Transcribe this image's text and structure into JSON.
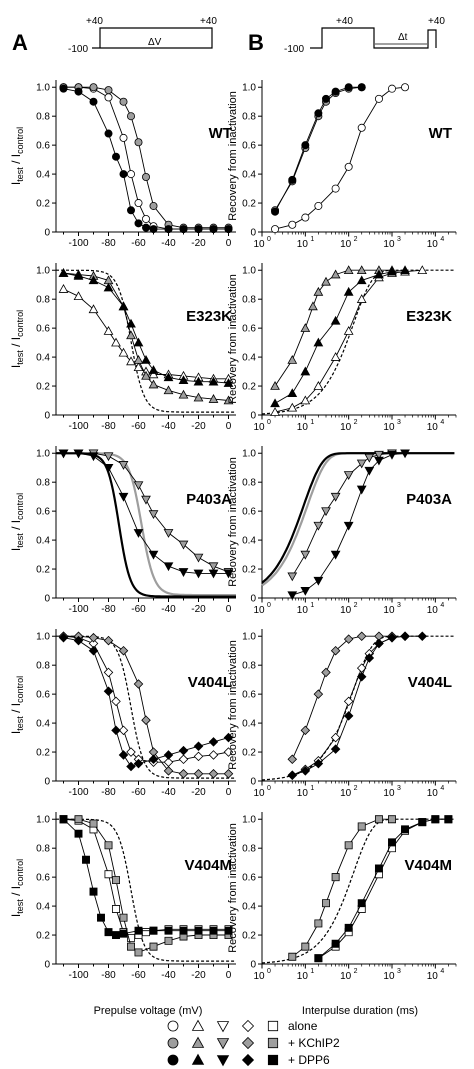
{
  "panel_letters": [
    "A",
    "B"
  ],
  "protocols": {
    "inactivation": {
      "hold": "-100",
      "pre": "+40",
      "post": "+40",
      "step": "ΔV"
    },
    "recovery": {
      "hold": "-100",
      "first": "+40",
      "second": "+40",
      "step": "Δt"
    }
  },
  "left_ylabel_main": "I",
  "left_ylabel_sub1": "test",
  "left_ylabel_mid": " / I",
  "left_ylabel_sub2": "control",
  "right_ylabel": "Recovery from inactivation",
  "left_xlabel": "Prepulse voltage (mV)",
  "right_xlabel": "Interpulse duration (ms)",
  "left_xticks": [
    "-100",
    "-80",
    "-60",
    "-40",
    "-20",
    "0"
  ],
  "yticks": [
    "0",
    "0.2",
    "0.4",
    "0.6",
    "0.8",
    "1.0"
  ],
  "right_xticks": [
    {
      "base": "10",
      "exp": "0"
    },
    {
      "base": "10",
      "exp": "1"
    },
    {
      "base": "10",
      "exp": "2"
    },
    {
      "base": "10",
      "exp": "3"
    },
    {
      "base": "10",
      "exp": "4"
    }
  ],
  "legend": {
    "rows": [
      {
        "label": "alone",
        "fill": "#ffffff"
      },
      {
        "label": "+ KChIP2",
        "fill": "#9e9e9e"
      },
      {
        "label": "+ DPP6",
        "fill": "#000000"
      }
    ],
    "shapes": [
      "circle",
      "triangle-up",
      "triangle-down",
      "diamond",
      "square"
    ]
  },
  "chart_data": [
    {
      "type": "scatter",
      "panel": "A",
      "mutant": "WT",
      "shape": "circle",
      "xlim": [
        -115,
        5
      ],
      "ylim": [
        0,
        1.05
      ],
      "series": [
        {
          "condition": "alone",
          "x": [
            -110,
            -100,
            -90,
            -80,
            -70,
            -65,
            -60,
            -55,
            -50,
            -40,
            -30,
            -20,
            -10,
            0
          ],
          "y": [
            1,
            1,
            0.99,
            0.93,
            0.65,
            0.4,
            0.2,
            0.09,
            0.04,
            0.02,
            0.02,
            0.02,
            0.02,
            0.02
          ]
        },
        {
          "condition": "+ KChIP2",
          "x": [
            -110,
            -100,
            -90,
            -80,
            -70,
            -65,
            -60,
            -55,
            -50,
            -40,
            -30,
            -20,
            -10,
            0
          ],
          "y": [
            1,
            1,
            1,
            0.98,
            0.9,
            0.8,
            0.62,
            0.38,
            0.18,
            0.05,
            0.03,
            0.03,
            0.03,
            0.03
          ]
        },
        {
          "condition": "+ DPP6",
          "x": [
            -110,
            -100,
            -90,
            -80,
            -75,
            -70,
            -65,
            -60,
            -55,
            -50,
            -40,
            -30,
            -20,
            -10,
            0
          ],
          "y": [
            0.99,
            0.97,
            0.9,
            0.68,
            0.52,
            0.4,
            0.15,
            0.06,
            0.03,
            0.02,
            0.02,
            0.02,
            0.02,
            0.02,
            0.02
          ]
        }
      ]
    },
    {
      "type": "scatter",
      "panel": "A",
      "mutant": "E323K",
      "shape": "triangle-up",
      "xlim": [
        -115,
        5
      ],
      "ylim": [
        0,
        1.05
      ],
      "reference_dashed": "WT alone",
      "series": [
        {
          "condition": "alone",
          "x": [
            -110,
            -100,
            -90,
            -80,
            -75,
            -70,
            -65,
            -60,
            -55,
            -50,
            -40,
            -30,
            -20,
            -10,
            0
          ],
          "y": [
            0.87,
            0.82,
            0.73,
            0.58,
            0.5,
            0.43,
            0.37,
            0.33,
            0.3,
            0.28,
            0.28,
            0.27,
            0.26,
            0.25,
            0.25
          ]
        },
        {
          "condition": "+ KChIP2",
          "x": [
            -110,
            -100,
            -90,
            -80,
            -70,
            -65,
            -60,
            -55,
            -50,
            -40,
            -30,
            -20,
            -10,
            0
          ],
          "y": [
            0.98,
            0.97,
            0.96,
            0.93,
            0.75,
            0.55,
            0.38,
            0.27,
            0.21,
            0.17,
            0.14,
            0.12,
            0.11,
            0.1
          ]
        },
        {
          "condition": "+ DPP6",
          "x": [
            -110,
            -100,
            -90,
            -80,
            -70,
            -65,
            -60,
            -55,
            -50,
            -40,
            -30,
            -20,
            -10,
            0
          ],
          "y": [
            0.98,
            0.96,
            0.93,
            0.88,
            0.75,
            0.63,
            0.5,
            0.38,
            0.31,
            0.26,
            0.24,
            0.23,
            0.23,
            0.22
          ]
        }
      ]
    },
    {
      "type": "scatter",
      "panel": "A",
      "mutant": "P403A",
      "shape": "triangle-down",
      "xlim": [
        -115,
        5
      ],
      "ylim": [
        0,
        1.05
      ],
      "reference_solid_black": "WT + DPP6 fit",
      "reference_solid_gray": "WT + KChIP2 fit",
      "series": [
        {
          "condition": "+ KChIP2",
          "x": [
            -110,
            -100,
            -90,
            -80,
            -70,
            -60,
            -55,
            -50,
            -40,
            -30,
            -20,
            -10,
            0
          ],
          "y": [
            1,
            1,
            1,
            0.98,
            0.92,
            0.78,
            0.68,
            0.58,
            0.45,
            0.37,
            0.28,
            0.22,
            0.18
          ]
        },
        {
          "condition": "+ DPP6",
          "x": [
            -110,
            -100,
            -90,
            -80,
            -70,
            -60,
            -50,
            -40,
            -30,
            -20,
            -10,
            0
          ],
          "y": [
            1,
            1,
            0.98,
            0.9,
            0.7,
            0.45,
            0.3,
            0.22,
            0.18,
            0.17,
            0.17,
            0.17
          ]
        }
      ]
    },
    {
      "type": "scatter",
      "panel": "A",
      "mutant": "V404L",
      "shape": "diamond",
      "xlim": [
        -115,
        5
      ],
      "ylim": [
        0,
        1.05
      ],
      "reference_dashed": "WT alone",
      "series": [
        {
          "condition": "alone",
          "x": [
            -110,
            -100,
            -90,
            -80,
            -75,
            -70,
            -65,
            -60,
            -50,
            -40,
            -30,
            -20,
            -10,
            0
          ],
          "y": [
            1,
            0.99,
            0.95,
            0.75,
            0.55,
            0.35,
            0.2,
            0.15,
            0.13,
            0.13,
            0.15,
            0.17,
            0.18,
            0.2
          ]
        },
        {
          "condition": "+ KChIP2",
          "x": [
            -110,
            -100,
            -90,
            -80,
            -70,
            -60,
            -55,
            -50,
            -40,
            -30,
            -20,
            -10,
            0
          ],
          "y": [
            1,
            1,
            0.99,
            0.97,
            0.9,
            0.67,
            0.42,
            0.2,
            0.07,
            0.05,
            0.05,
            0.05,
            0.05
          ]
        },
        {
          "condition": "+ DPP6",
          "x": [
            -110,
            -100,
            -90,
            -80,
            -75,
            -70,
            -65,
            -60,
            -50,
            -40,
            -30,
            -20,
            -10,
            0
          ],
          "y": [
            0.99,
            0.97,
            0.9,
            0.62,
            0.35,
            0.18,
            0.1,
            0.12,
            0.15,
            0.18,
            0.21,
            0.24,
            0.27,
            0.3
          ]
        }
      ]
    },
    {
      "type": "scatter",
      "panel": "A",
      "mutant": "V404M",
      "shape": "square",
      "xlim": [
        -115,
        5
      ],
      "ylim": [
        0,
        1.05
      ],
      "reference_dashed": "WT alone",
      "series": [
        {
          "condition": "alone",
          "x": [
            -110,
            -100,
            -90,
            -80,
            -75,
            -70,
            -65,
            -60,
            -55,
            -50,
            -40,
            -30,
            -20,
            -10,
            0
          ],
          "y": [
            1,
            0.99,
            0.93,
            0.62,
            0.38,
            0.22,
            0.18,
            0.2,
            0.22,
            0.23,
            0.24,
            0.24,
            0.24,
            0.24,
            0.24
          ]
        },
        {
          "condition": "+ KChIP2",
          "x": [
            -110,
            -100,
            -90,
            -80,
            -75,
            -70,
            -65,
            -60,
            -50,
            -40,
            -30,
            -20,
            -10,
            0
          ],
          "y": [
            1,
            1,
            0.97,
            0.82,
            0.58,
            0.32,
            0.12,
            0.08,
            0.12,
            0.16,
            0.19,
            0.2,
            0.2,
            0.2
          ]
        },
        {
          "condition": "+ DPP6",
          "x": [
            -110,
            -100,
            -95,
            -90,
            -85,
            -80,
            -75,
            -70,
            -60,
            -50,
            -40,
            -30,
            -20,
            -10,
            0
          ],
          "y": [
            1,
            0.9,
            0.72,
            0.5,
            0.32,
            0.22,
            0.2,
            0.21,
            0.23,
            0.23,
            0.23,
            0.23,
            0.23,
            0.23,
            0.23
          ]
        }
      ]
    },
    {
      "type": "scatter",
      "panel": "B",
      "mutant": "WT",
      "shape": "circle",
      "xscale": "log",
      "xlim": [
        1,
        30000
      ],
      "ylim": [
        0,
        1.05
      ],
      "series": [
        {
          "condition": "alone",
          "x": [
            2,
            5,
            10,
            20,
            50,
            100,
            200,
            500,
            1000,
            2000
          ],
          "y": [
            0.02,
            0.05,
            0.1,
            0.18,
            0.3,
            0.45,
            0.72,
            0.92,
            0.99,
            1
          ]
        },
        {
          "condition": "+ KChIP2",
          "x": [
            2,
            5,
            10,
            20,
            30,
            50,
            100,
            200
          ],
          "y": [
            0.15,
            0.35,
            0.58,
            0.8,
            0.9,
            0.96,
            0.99,
            1
          ]
        },
        {
          "condition": "+ DPP6",
          "x": [
            2,
            5,
            10,
            20,
            30,
            50,
            100,
            200
          ],
          "y": [
            0.14,
            0.36,
            0.6,
            0.82,
            0.92,
            0.97,
            1,
            1
          ]
        }
      ]
    },
    {
      "type": "scatter",
      "panel": "B",
      "mutant": "E323K",
      "shape": "triangle-up",
      "xscale": "log",
      "xlim": [
        1,
        30000
      ],
      "ylim": [
        0,
        1.05
      ],
      "reference_dashed": "WT alone",
      "series": [
        {
          "condition": "alone",
          "x": [
            2,
            5,
            10,
            20,
            50,
            100,
            200,
            500,
            1000,
            2000,
            5000
          ],
          "y": [
            0.02,
            0.05,
            0.1,
            0.2,
            0.4,
            0.58,
            0.8,
            0.95,
            0.98,
            0.99,
            1
          ]
        },
        {
          "condition": "+ KChIP2",
          "x": [
            2,
            5,
            10,
            15,
            20,
            30,
            50,
            100,
            200,
            500,
            1000
          ],
          "y": [
            0.2,
            0.38,
            0.6,
            0.75,
            0.85,
            0.92,
            0.97,
            1,
            1,
            1,
            1
          ]
        },
        {
          "condition": "+ DPP6",
          "x": [
            2,
            5,
            10,
            20,
            50,
            100,
            200,
            500,
            1000,
            2000
          ],
          "y": [
            0.08,
            0.15,
            0.3,
            0.5,
            0.65,
            0.85,
            0.93,
            0.97,
            0.99,
            1
          ]
        }
      ]
    },
    {
      "type": "scatter",
      "panel": "B",
      "mutant": "P403A",
      "shape": "triangle-down",
      "xscale": "log",
      "xlim": [
        1,
        30000
      ],
      "ylim": [
        0,
        1.05
      ],
      "reference_solid_black": "WT + DPP6 fit",
      "reference_solid_gray": "WT + KChIP2 fit",
      "series": [
        {
          "condition": "+ KChIP2",
          "x": [
            5,
            10,
            20,
            30,
            50,
            100,
            200,
            300,
            500,
            1000
          ],
          "y": [
            0.15,
            0.3,
            0.5,
            0.6,
            0.7,
            0.85,
            0.93,
            0.97,
            0.99,
            1
          ]
        },
        {
          "condition": "+ DPP6",
          "x": [
            5,
            10,
            20,
            50,
            100,
            200,
            300,
            500,
            1000,
            2000
          ],
          "y": [
            0.02,
            0.05,
            0.12,
            0.3,
            0.5,
            0.75,
            0.88,
            0.95,
            0.99,
            1
          ]
        }
      ]
    },
    {
      "type": "scatter",
      "panel": "B",
      "mutant": "V404L",
      "shape": "diamond",
      "xscale": "log",
      "xlim": [
        1,
        30000
      ],
      "ylim": [
        0,
        1.05
      ],
      "reference_dashed": "WT alone",
      "series": [
        {
          "condition": "alone",
          "x": [
            5,
            10,
            20,
            50,
            100,
            200,
            300,
            500,
            1000,
            2000
          ],
          "y": [
            0.04,
            0.08,
            0.14,
            0.3,
            0.55,
            0.78,
            0.88,
            0.95,
            0.99,
            1
          ]
        },
        {
          "condition": "+ KChIP2",
          "x": [
            5,
            10,
            20,
            30,
            50,
            100,
            200,
            500,
            1000
          ],
          "y": [
            0.15,
            0.35,
            0.6,
            0.75,
            0.9,
            0.98,
            1,
            1,
            1
          ]
        },
        {
          "condition": "+ DPP6",
          "x": [
            5,
            10,
            20,
            50,
            100,
            200,
            300,
            500,
            1000,
            2000,
            5000
          ],
          "y": [
            0.04,
            0.07,
            0.12,
            0.22,
            0.45,
            0.72,
            0.85,
            0.95,
            0.99,
            1,
            1
          ]
        }
      ]
    },
    {
      "type": "scatter",
      "panel": "B",
      "mutant": "V404M",
      "shape": "square",
      "xscale": "log",
      "xlim": [
        1,
        30000
      ],
      "ylim": [
        0,
        1.05
      ],
      "reference_dashed": "WT alone",
      "series": [
        {
          "condition": "alone",
          "x": [
            20,
            50,
            100,
            200,
            500,
            1000,
            2000,
            5000,
            10000,
            20000
          ],
          "y": [
            0.04,
            0.12,
            0.22,
            0.38,
            0.62,
            0.8,
            0.92,
            0.98,
            1,
            1
          ]
        },
        {
          "condition": "+ KChIP2",
          "x": [
            5,
            10,
            20,
            30,
            50,
            100,
            200,
            500,
            1000
          ],
          "y": [
            0.05,
            0.12,
            0.28,
            0.42,
            0.6,
            0.82,
            0.95,
            1,
            1
          ]
        },
        {
          "condition": "+ DPP6",
          "x": [
            20,
            50,
            100,
            200,
            500,
            1000,
            2000,
            5000,
            10000,
            20000
          ],
          "y": [
            0.04,
            0.14,
            0.25,
            0.42,
            0.66,
            0.84,
            0.93,
            0.98,
            1,
            1
          ]
        }
      ]
    }
  ]
}
